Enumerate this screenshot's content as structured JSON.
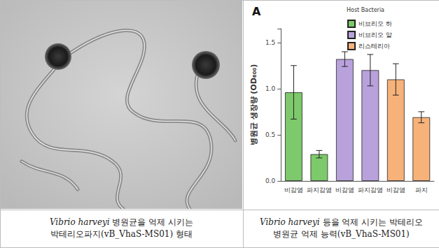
{
  "figure": {
    "left_caption": [
      [
        {
          "text": "Vibrio harveyi",
          "italic": true
        },
        {
          "text": " 병원균을 억제 시키는"
        }
      ],
      [
        {
          "text": "박테리오파지(vB_VhaS-MS01) 형태"
        }
      ]
    ],
    "right_caption": [
      [
        {
          "text": "Vibrio harveyi",
          "italic": true
        },
        {
          "text": " 등을 억제 시키는 박테리오"
        }
      ],
      [
        {
          "text": "병원균 억제 능력(vB_VhaS-MS01)"
        }
      ]
    ]
  },
  "chart_data": {
    "type": "bar",
    "title": "A",
    "y_label": "병원균 생장량 (OD₆₀₀)",
    "legend_title": "Host Bacteria",
    "legend": "top-right",
    "grid": false,
    "categories": [
      "비감염",
      "파지감염",
      "비감염",
      "파지감염",
      "비감염",
      "파지"
    ],
    "ylim": [
      0,
      1.65
    ],
    "yticks": [
      {
        "value": 0,
        "label": "0.0"
      },
      {
        "value": 0.5,
        "label": "0.5"
      },
      {
        "value": 1,
        "label": "1.0"
      },
      {
        "value": 1.5,
        "label": "1.5"
      }
    ],
    "series": [
      {
        "name": "비브리오 하",
        "color": "#7dc96b",
        "values": [
          0.96,
          0.29,
          null,
          null,
          null,
          null
        ],
        "errors": [
          0.29,
          0.04,
          null,
          null,
          null,
          null
        ]
      },
      {
        "name": "비브리오 알",
        "color": "#b9a2dc",
        "values": [
          null,
          null,
          1.32,
          1.2,
          null,
          null
        ],
        "errors": [
          null,
          null,
          0.08,
          0.17,
          null,
          null
        ]
      },
      {
        "name": "리스테리아",
        "color": "#f7b27a",
        "values": [
          null,
          null,
          null,
          null,
          1.1,
          0.69
        ],
        "errors": [
          null,
          null,
          null,
          null,
          0.17,
          0.06
        ]
      }
    ]
  }
}
